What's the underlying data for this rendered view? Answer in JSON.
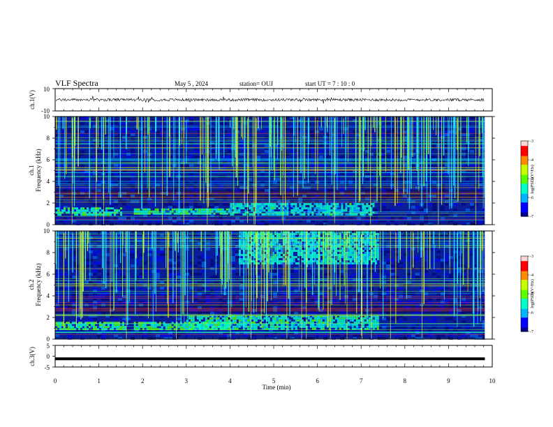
{
  "header": {
    "title": "VLF Spectra",
    "date": "May 5 , 2024",
    "station": "station= OUJ",
    "start": "start UT = 7 : 10 : 0"
  },
  "colors": {
    "spectrogram_background": "#0a1e9a",
    "colormap": [
      "#00008b",
      "#0000ff",
      "#00b4ff",
      "#00ffc8",
      "#5aff00",
      "#c8ff00",
      "#ff8c00",
      "#ff0000",
      "#ffd6d6"
    ]
  },
  "chart_data": [
    {
      "type": "line",
      "name": "ch1-waveform",
      "ylabel": "ch.1(V)",
      "ylim": [
        -10,
        10
      ],
      "yticks": [
        "10",
        "-10"
      ],
      "x": [
        0,
        1,
        2,
        3,
        4,
        5,
        6,
        7,
        8,
        9,
        9.83
      ],
      "values": [
        0,
        0,
        0,
        0,
        0,
        0,
        0,
        0,
        0,
        0,
        0
      ],
      "noise_amplitude": 1.2
    },
    {
      "type": "heatmap",
      "name": "ch1-spectrogram",
      "ylabel_line1": "ch.1",
      "ylabel_line2": "Frequency (kHz)",
      "ylim": [
        0,
        10
      ],
      "yticks": [
        "0",
        "2",
        "4",
        "6",
        "8",
        "10"
      ],
      "xlim": [
        0,
        10
      ],
      "data_end_min": 9.83,
      "colorbar": {
        "label": "log(PSD)(V²/Hz)",
        "min": -7,
        "max": -3,
        "ticks": [
          "-3",
          "-4",
          "-5",
          "-6",
          "-7"
        ]
      },
      "enhancements": [
        {
          "t0": 0,
          "t1": 1.5,
          "f0": 1.0,
          "f1": 1.6,
          "level": -5.4
        },
        {
          "t0": 1.8,
          "t1": 4.0,
          "f0": 1.0,
          "f1": 1.5,
          "level": -5.4
        },
        {
          "t0": 4.0,
          "t1": 7.3,
          "f0": 1.0,
          "f1": 2.0,
          "level": -5.6
        }
      ]
    },
    {
      "type": "heatmap",
      "name": "ch2-spectrogram",
      "ylabel_line1": "ch.2",
      "ylabel_line2": "Frequency (kHz)",
      "ylim": [
        0,
        10
      ],
      "yticks": [
        "0",
        "2",
        "4",
        "6",
        "8",
        "10"
      ],
      "xlim": [
        0,
        10
      ],
      "data_end_min": 9.83,
      "colorbar": {
        "label": "log(PSD)(V²/Hz)",
        "min": -7,
        "max": -3,
        "ticks": [
          "-3",
          "-4",
          "-5",
          "-6",
          "-7"
        ]
      },
      "enhancements": [
        {
          "t0": 0,
          "t1": 1.6,
          "f0": 1.0,
          "f1": 1.6,
          "level": -5.2
        },
        {
          "t0": 1.8,
          "t1": 4.0,
          "f0": 1.0,
          "f1": 1.6,
          "level": -5.2
        },
        {
          "t0": 3.0,
          "t1": 7.4,
          "f0": 1.0,
          "f1": 2.2,
          "level": -5.5
        },
        {
          "t0": 4.2,
          "t1": 7.4,
          "f0": 7.0,
          "f1": 10.0,
          "level": -5.6
        }
      ]
    },
    {
      "type": "line",
      "name": "ch3-waveform",
      "ylabel": "ch.3(V)",
      "ylim": [
        -5,
        5
      ],
      "yticks": [
        "5",
        "0",
        "-5"
      ],
      "x": [
        0,
        1,
        2,
        3,
        4,
        5,
        6,
        7,
        8,
        9,
        9.83
      ],
      "values": [
        -1.2,
        -1.2,
        -1.2,
        -1.2,
        -1.2,
        -1.2,
        -1.2,
        -1.2,
        -1.2,
        -1.2,
        -1.2
      ]
    }
  ],
  "xaxis": {
    "label": "Time (min)",
    "min": 0,
    "max": 10,
    "ticks": [
      "0",
      "1",
      "2",
      "3",
      "4",
      "5",
      "6",
      "7",
      "8",
      "9",
      "10"
    ]
  }
}
